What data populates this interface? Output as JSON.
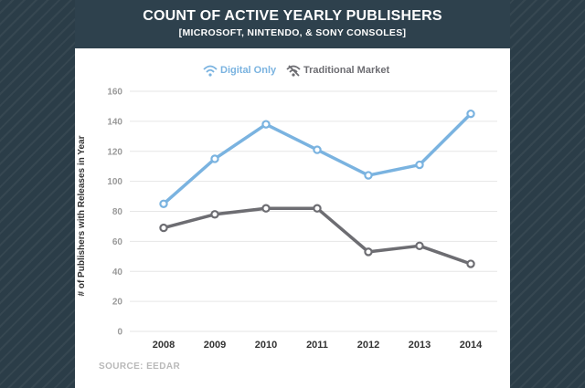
{
  "chart_data": {
    "type": "line",
    "title": "COUNT OF ACTIVE YEARLY PUBLISHERS",
    "subtitle": "[MICROSOFT, NINTENDO, & SONY CONSOLES]",
    "xlabel": "",
    "ylabel": "# of Publishers with Releases in Year",
    "ylim": [
      0,
      160
    ],
    "yticks": [
      0,
      20,
      40,
      60,
      80,
      100,
      120,
      140,
      160
    ],
    "grid": true,
    "legend_position": "top-center",
    "x": [
      "2008",
      "2009",
      "2010",
      "2011",
      "2012",
      "2013",
      "2014"
    ],
    "series": [
      {
        "name": "Digital Only",
        "color": "#7ab3e0",
        "icon": "wifi-icon",
        "values": [
          85,
          115,
          138,
          121,
          104,
          111,
          145
        ]
      },
      {
        "name": "Traditional Market",
        "color": "#6d6d72",
        "icon": "wifi-off-icon",
        "values": [
          69,
          78,
          82,
          82,
          53,
          57,
          45
        ]
      }
    ],
    "source": "SOURCE: EEDAR"
  },
  "colors": {
    "background": "#2b3d48",
    "header": "#2e414d",
    "grid": "#e6e6e6"
  }
}
